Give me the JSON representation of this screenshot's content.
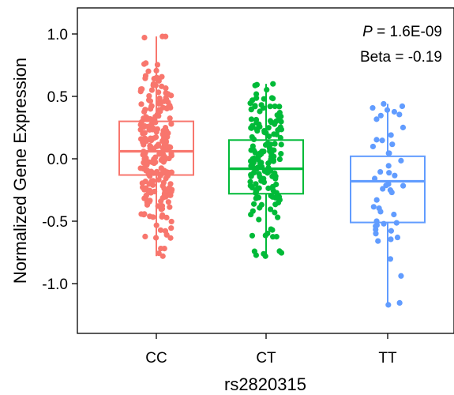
{
  "chart_data": {
    "type": "box",
    "xlabel": "rs2820315",
    "ylabel": "Normalized Gene Expression",
    "ylim": [
      -1.38,
      1.2
    ],
    "yticks": [
      1.0,
      0.5,
      0.0,
      -0.5,
      -1.0
    ],
    "ytick_labels": [
      "1.0",
      "0.5",
      "0.0",
      "-0.5",
      "-1.0"
    ],
    "categories": [
      "CC",
      "CT",
      "TT"
    ],
    "annotation": {
      "p_label": "P",
      "p_value": " = 1.6E-09",
      "beta": "Beta = -0.19"
    },
    "series": [
      {
        "category": "CC",
        "color": "#F8766D",
        "stats": {
          "q1": -0.13,
          "median": 0.06,
          "q3": 0.3,
          "whisker_low": -0.78,
          "whisker_high": 0.98
        },
        "n_points": 240
      },
      {
        "category": "CT",
        "color": "#00BA38",
        "stats": {
          "q1": -0.28,
          "median": -0.08,
          "q3": 0.15,
          "whisker_low": -0.78,
          "whisker_high": 0.6
        },
        "n_points": 160
      },
      {
        "category": "TT",
        "color": "#619CFF",
        "stats": {
          "q1": -0.51,
          "median": -0.18,
          "q3": 0.02,
          "whisker_low": -1.17,
          "whisker_high": 0.44
        },
        "n_points": 48
      }
    ]
  }
}
